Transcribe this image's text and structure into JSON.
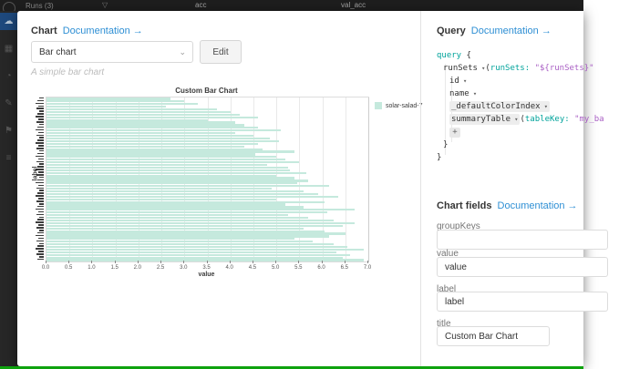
{
  "background": {
    "runs_label": "Runs (3)",
    "panel_titles": [
      "acc",
      "val_acc"
    ]
  },
  "sidebar": {
    "icons": [
      {
        "name": "cloud-icon",
        "glyph": "☁",
        "active": true
      },
      {
        "name": "table-icon",
        "glyph": "▦",
        "active": false
      },
      {
        "name": "chart-icon",
        "glyph": "◔",
        "active": false
      },
      {
        "name": "edit-icon",
        "glyph": "✎",
        "active": false
      },
      {
        "name": "flag-icon",
        "glyph": "⚑",
        "active": false
      },
      {
        "name": "list-icon",
        "glyph": "≡",
        "active": false
      }
    ]
  },
  "modal": {
    "chart_section": {
      "title": "Chart",
      "documentation_link": "Documentation →",
      "chart_type_value": "Bar chart",
      "edit_button": "Edit",
      "subtitle": "A simple bar chart"
    },
    "query_section": {
      "title": "Query",
      "documentation_link": "Documentation →",
      "add_button": "+",
      "code_lines": [
        {
          "indent": 0,
          "tokens": [
            {
              "t": "query ",
              "c": "kw"
            },
            {
              "t": "{",
              "c": "pl"
            }
          ]
        },
        {
          "indent": 1,
          "tokens": [
            {
              "t": "runSets",
              "c": "pl"
            },
            {
              "t": " ▾",
              "c": "cr"
            },
            {
              "t": "(",
              "c": "pl"
            },
            {
              "t": "runSets:",
              "c": "kw"
            },
            {
              "t": " ",
              "c": "pl"
            },
            {
              "t": "\"${runSets}\"",
              "c": "st"
            }
          ]
        },
        {
          "indent": 2,
          "tokens": [
            {
              "t": "id",
              "c": "pl"
            },
            {
              "t": " ▾",
              "c": "cr"
            }
          ]
        },
        {
          "indent": 2,
          "tokens": [
            {
              "t": "name",
              "c": "pl"
            },
            {
              "t": " ▾",
              "c": "cr"
            }
          ]
        },
        {
          "indent": 2,
          "pill": true,
          "tokens": [
            {
              "t": "_defaultColorIndex",
              "c": "pl"
            },
            {
              "t": " ▾",
              "c": "cr"
            }
          ]
        },
        {
          "indent": 2,
          "pill": true,
          "pill_count": 2,
          "tokens": [
            {
              "t": "summaryTable",
              "c": "pl"
            },
            {
              "t": " ▾",
              "c": "cr"
            },
            {
              "t": "(",
              "c": "pl"
            },
            {
              "t": "tableKey:",
              "c": "kw"
            },
            {
              "t": " ",
              "c": "pl"
            },
            {
              "t": "\"my_ba",
              "c": "st"
            }
          ]
        },
        {
          "indent": 2,
          "button": "+"
        },
        {
          "indent": 1,
          "tokens": [
            {
              "t": "}",
              "c": "pl"
            }
          ]
        },
        {
          "indent": 0,
          "tokens": [
            {
              "t": "}",
              "c": "pl"
            }
          ]
        }
      ]
    },
    "chart_fields_section": {
      "title": "Chart fields",
      "documentation_link": "Documentation →",
      "fields": [
        {
          "label": "groupKeys",
          "value": "",
          "short": false
        },
        {
          "label": "value",
          "value": "value",
          "short": false
        },
        {
          "label": "label",
          "value": "label",
          "short": false
        },
        {
          "label": "title",
          "value": "Custom Bar Chart",
          "short": true
        }
      ]
    }
  },
  "chart_data": {
    "type": "bar",
    "orientation": "horizontal",
    "title": "Custom Bar Chart",
    "xlabel": "value",
    "ylabel": "label",
    "xlim": [
      0,
      7
    ],
    "x_ticks": [
      "0.0",
      "0.5",
      "1.0",
      "1.5",
      "2.0",
      "2.5",
      "3.0",
      "3.5",
      "4.0",
      "4.5",
      "5.0",
      "5.5",
      "6.0",
      "6.5",
      "7.0"
    ],
    "grid": true,
    "legend_position": "right",
    "legend": [
      {
        "name": "solar-salad-7",
        "color": "#c5e9dd"
      }
    ],
    "y_tick_labels_illegible": true,
    "values": [
      2.7,
      3.0,
      3.3,
      2.6,
      3.7,
      4.0,
      4.2,
      4.6,
      3.5,
      4.1,
      4.3,
      4.6,
      5.1,
      4.1,
      4.5,
      4.85,
      5.05,
      4.6,
      4.3,
      4.7,
      5.4,
      4.55,
      5.0,
      5.2,
      5.5,
      4.8,
      5.25,
      5.3,
      5.65,
      5.0,
      5.4,
      5.7,
      5.45,
      6.15,
      4.9,
      5.6,
      5.9,
      6.35,
      5.0,
      6.05,
      5.2,
      5.6,
      6.7,
      6.1,
      5.25,
      5.7,
      6.25,
      6.7,
      6.45,
      5.6,
      6.05,
      6.5,
      6.15,
      5.4,
      5.8,
      6.25,
      6.55,
      6.9,
      6.3,
      6.6,
      6.45,
      6.9
    ]
  },
  "colors": {
    "bar": "#c5e9dd",
    "link": "#2e8fd4",
    "code_keyword": "#00a39b",
    "code_string": "#a95fc4",
    "sidebar_active": "#1d4f8c",
    "bottom_bar": "#0ea20e"
  }
}
